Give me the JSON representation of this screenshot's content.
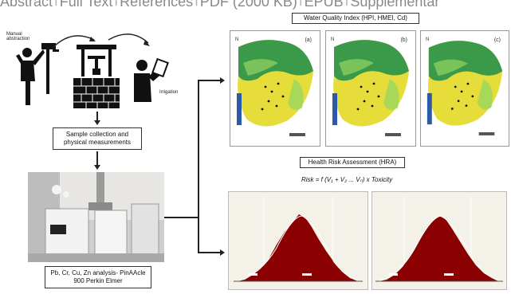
{
  "topbar": {
    "items": [
      "Abstract",
      "Full Text",
      "References",
      "PDF (2000 KB)",
      "EPUB",
      "Supplementar"
    ]
  },
  "diagram": {
    "label_manual_abstraction": "Manual abstraction",
    "label_irrigation": "Irrigation",
    "box_sample_collection": "Sample collection and physical measurements",
    "box_analysis": "Pb, Cr, Cu, Zn analysis- PinAAcle 900 Perkin Elmer",
    "box_wqi": "Water Quality Index (HPI, HMEI, Cd)",
    "box_hra": "Health Risk Assessment (HRA)",
    "formula": "Risk = f (V₁ + V₂ ... Vₙ) x Toxicity",
    "map_letters": [
      "(a)",
      "(b)",
      "(c)"
    ],
    "north_symbol": "N"
  },
  "colors": {
    "hist_fill": "#8b0000",
    "hist_curve": "#ffffff",
    "map_high": "#2a8a3a",
    "map_low": "#f2e03a",
    "map_blue": "#2a5aa8"
  }
}
